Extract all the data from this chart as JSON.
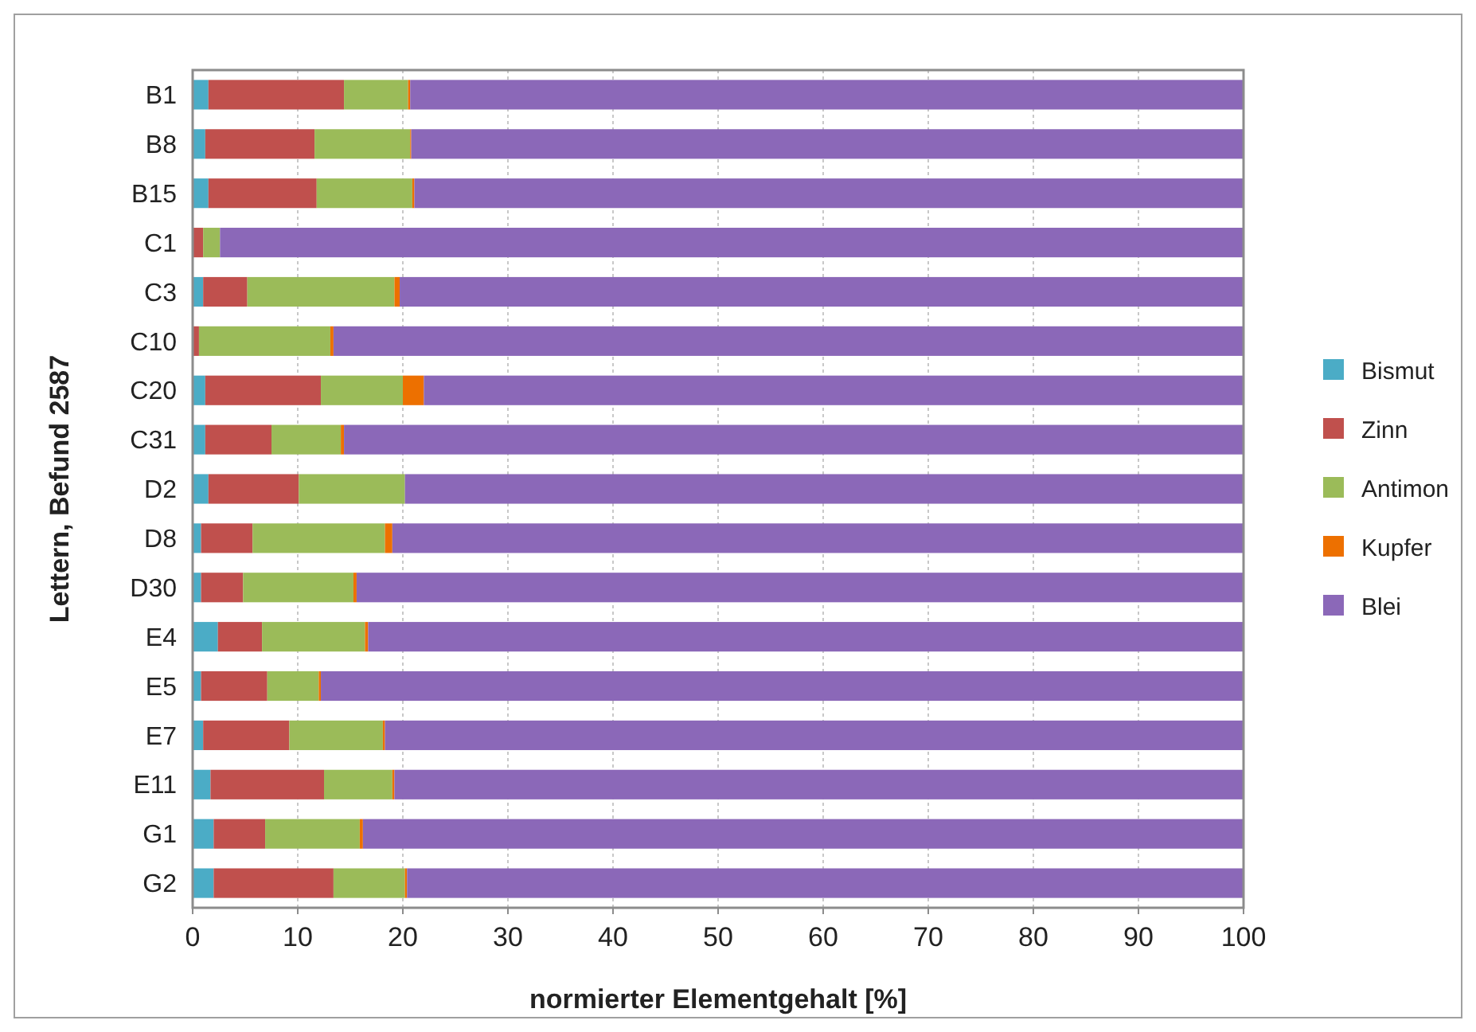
{
  "chart_data": {
    "type": "bar",
    "orientation": "horizontal",
    "stacked": true,
    "xlabel": "normierter Elementgehalt [%]",
    "ylabel": "Lettern, Befund 2587",
    "categories": [
      "B1",
      "B8",
      "B15",
      "C1",
      "C3",
      "C10",
      "C20",
      "C31",
      "D2",
      "D8",
      "D30",
      "E4",
      "E5",
      "E7",
      "E11",
      "G1",
      "G2"
    ],
    "series": [
      {
        "name": "Bismut",
        "color": "#4bacc6",
        "values": [
          1.5,
          1.2,
          1.5,
          0,
          1.0,
          0,
          1.2,
          1.2,
          1.5,
          0.8,
          0.8,
          2.4,
          0.8,
          1.0,
          1.7,
          2.0,
          2.0
        ]
      },
      {
        "name": "Zinn",
        "color": "#c0504d",
        "values": [
          12.9,
          10.4,
          10.3,
          1.0,
          4.2,
          0.6,
          11.0,
          6.3,
          8.6,
          4.9,
          4.0,
          4.2,
          6.3,
          8.2,
          10.8,
          4.9,
          11.4
        ]
      },
      {
        "name": "Antimon",
        "color": "#9bbb59",
        "values": [
          6.1,
          9.1,
          9.1,
          1.6,
          14.0,
          12.5,
          7.8,
          6.6,
          10.1,
          12.6,
          10.5,
          9.8,
          4.9,
          8.9,
          6.5,
          9.0,
          6.8
        ]
      },
      {
        "name": "Kupfer",
        "color": "#ed7000",
        "values": [
          0.2,
          0.1,
          0.2,
          0,
          0.5,
          0.3,
          2.0,
          0.3,
          0,
          0.7,
          0.3,
          0.3,
          0.2,
          0.2,
          0.2,
          0.3,
          0.2
        ]
      },
      {
        "name": "Blei",
        "color": "#8b68b8",
        "values": [
          79.3,
          79.2,
          78.9,
          97.4,
          80.3,
          86.6,
          78.0,
          85.6,
          79.8,
          81.0,
          84.4,
          83.3,
          87.8,
          81.7,
          80.8,
          83.8,
          79.6
        ]
      }
    ],
    "xlim": [
      0,
      100
    ],
    "xticks": [
      0,
      10,
      20,
      30,
      40,
      50,
      60,
      70,
      80,
      90,
      100
    ],
    "grid": "x",
    "legend": "right"
  }
}
